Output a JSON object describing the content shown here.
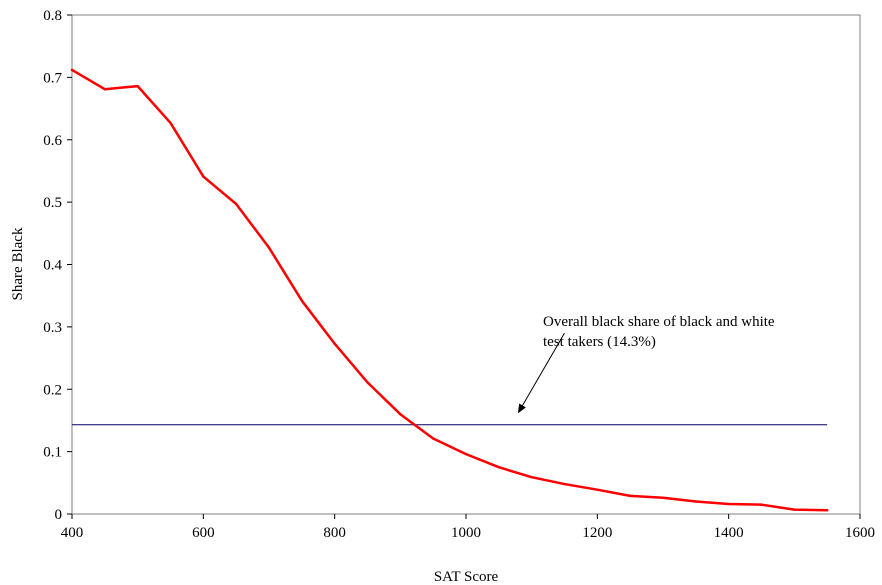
{
  "chart_data": {
    "type": "line",
    "title": "",
    "xlabel": "SAT Score",
    "ylabel": "Share Black",
    "xlim": [
      400,
      1600
    ],
    "ylim": [
      0,
      0.8
    ],
    "x_ticks": [
      "400",
      "600",
      "800",
      "1000",
      "1200",
      "1400",
      "1600"
    ],
    "y_ticks": [
      "0",
      "0.1",
      "0.2",
      "0.3",
      "0.4",
      "0.5",
      "0.6",
      "0.7",
      "0.8"
    ],
    "grid": false,
    "legend": "none",
    "series": [
      {
        "color": "#ff0000",
        "x": [
          400,
          450,
          500,
          550,
          600,
          650,
          700,
          750,
          800,
          850,
          900,
          950,
          1000,
          1050,
          1100,
          1150,
          1200,
          1250,
          1300,
          1350,
          1400,
          1450,
          1500,
          1550
        ],
        "y": [
          0.712,
          0.681,
          0.686,
          0.627,
          0.541,
          0.497,
          0.427,
          0.342,
          0.273,
          0.211,
          0.16,
          0.121,
          0.096,
          0.075,
          0.059,
          0.048,
          0.039,
          0.029,
          0.026,
          0.02,
          0.016,
          0.015,
          0.007,
          0.006
        ]
      }
    ],
    "reference_line": {
      "value": 0.143,
      "x_range": [
        400,
        1550
      ],
      "color": "#000066"
    },
    "annotation": {
      "lines": [
        "Overall black share of black and white",
        "test takers (14.3%)"
      ],
      "arrow_from": [
        1150,
        0.29
      ],
      "arrow_to": [
        1080,
        0.163
      ]
    }
  }
}
